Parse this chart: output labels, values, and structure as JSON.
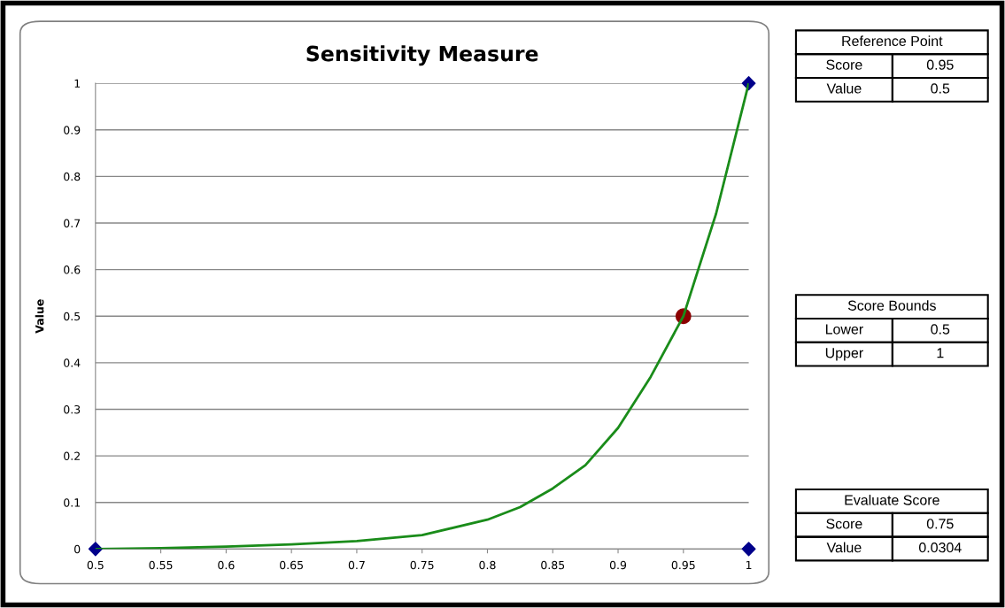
{
  "chart_data": [
    {
      "type": "line",
      "title": "Sensitivity Measure",
      "ylabel": "Value",
      "xlim": [
        0.5,
        1
      ],
      "xticks": [
        0.5,
        0.55,
        0.6,
        0.65,
        0.7,
        0.75,
        0.8,
        0.85,
        0.9,
        0.95,
        1
      ],
      "ylim": [
        0,
        1
      ],
      "yticks": [
        0,
        0.1,
        0.2,
        0.3,
        0.4,
        0.5,
        0.6,
        0.7,
        0.8,
        0.9,
        1
      ],
      "grid": "y",
      "series": [
        {
          "type": "line",
          "color": "#1a8c1a",
          "marker": "none",
          "x": [
            0.5,
            0.55,
            0.6,
            0.65,
            0.7,
            0.75,
            0.8,
            0.825,
            0.85,
            0.875,
            0.9,
            0.925,
            0.95,
            0.975,
            1
          ],
          "values": [
            0,
            0.002,
            0.005,
            0.01,
            0.017,
            0.03,
            0.063,
            0.09,
            0.13,
            0.18,
            0.26,
            0.37,
            0.5,
            0.72,
            1
          ]
        },
        {
          "type": "scatter",
          "color": "#00008b",
          "marker": "diamond",
          "x": [
            0.5,
            1,
            1
          ],
          "values": [
            0,
            0,
            1
          ]
        },
        {
          "type": "scatter",
          "color": "#8b0000",
          "marker": "circle",
          "x": [
            0.95
          ],
          "values": [
            0.5
          ]
        }
      ]
    },
    {
      "type": "other",
      "annotations": [
        "Reference Point",
        "Score",
        "0.95",
        "Value",
        "0.5",
        "Score Bounds",
        "Lower",
        "0.5",
        "Upper",
        "1",
        "Evaluate Score",
        "Score",
        "0.75",
        "Value",
        "0.0304"
      ]
    }
  ]
}
